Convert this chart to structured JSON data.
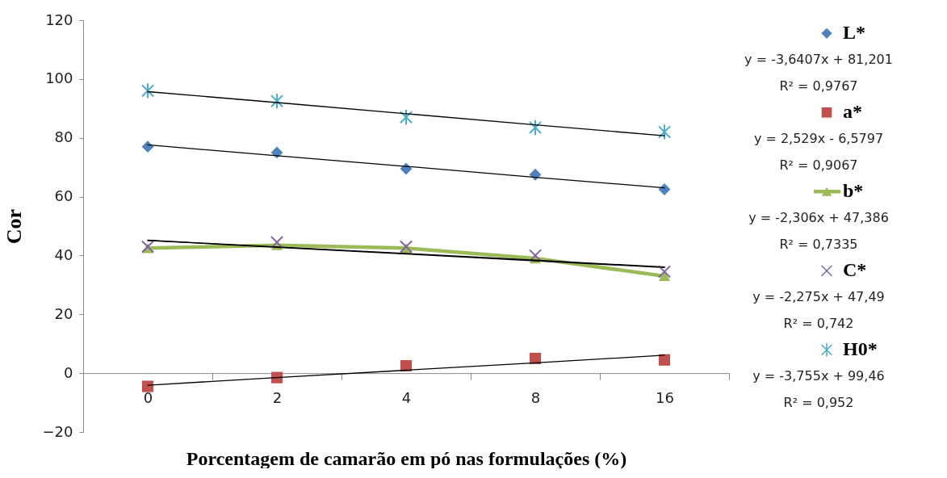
{
  "chart_data": {
    "type": "scatter",
    "xlabel": "Porcentagem de camarão em pó nas formulações (%)",
    "ylabel": "Cor",
    "categories": [
      "0",
      "2",
      "4",
      "8",
      "16"
    ],
    "ylim": [
      -20,
      120
    ],
    "yticks": [
      -20,
      0,
      20,
      40,
      60,
      80,
      100,
      120
    ],
    "grid": false,
    "legend": "right",
    "series": [
      {
        "name": "L*",
        "marker": "diamond",
        "color": "#4f81bd",
        "values": [
          77,
          75,
          69.5,
          67.5,
          62.5
        ]
      },
      {
        "type": "line",
        "marker": "none",
        "color": "#000000",
        "values": [
          77.6,
          73.9,
          70.3,
          66.6,
          63.0
        ]
      },
      {
        "name": "a*",
        "marker": "square",
        "color": "#c0504d",
        "values": [
          -4.5,
          -1.5,
          2.5,
          5,
          4.5
        ]
      },
      {
        "type": "line",
        "marker": "none",
        "color": "#000000",
        "values": [
          -4.1,
          -1.5,
          1.0,
          3.5,
          6.1
        ]
      },
      {
        "name": "b*",
        "type": "line",
        "marker": "triangle",
        "color": "#9bbb59",
        "values": [
          42.5,
          43.5,
          42.5,
          39,
          33
        ]
      },
      {
        "type": "line",
        "marker": "none",
        "color": "#000000",
        "values": [
          45.1,
          42.8,
          40.5,
          38.2,
          35.9
        ]
      },
      {
        "name": "C*",
        "marker": "cross",
        "color": "#8064a2",
        "values": [
          43,
          44.5,
          43,
          40,
          34.5
        ]
      },
      {
        "type": "line",
        "marker": "none",
        "color": "#000000",
        "values": [
          45.2,
          42.9,
          40.7,
          38.4,
          36.1
        ]
      },
      {
        "name": "H0*",
        "color": "#4bacc6",
        "values": [
          96,
          92.5,
          87,
          83.5,
          82
        ]
      },
      {
        "type": "line",
        "marker": "none",
        "color": "#000000",
        "values": [
          95.7,
          92.0,
          88.2,
          84.4,
          80.7
        ]
      }
    ],
    "annotations": [
      "y = -3,6407x + 81,201",
      "R² = 0,9767",
      "y = 2,529x - 6,5797",
      "R² = 0,9067",
      "y = -2,306x + 47,386",
      "R² = 0,7335",
      "y = -2,275x + 47,49",
      "R² = 0,742",
      "y = -3,755x + 99,46",
      "R² = 0,952"
    ]
  }
}
